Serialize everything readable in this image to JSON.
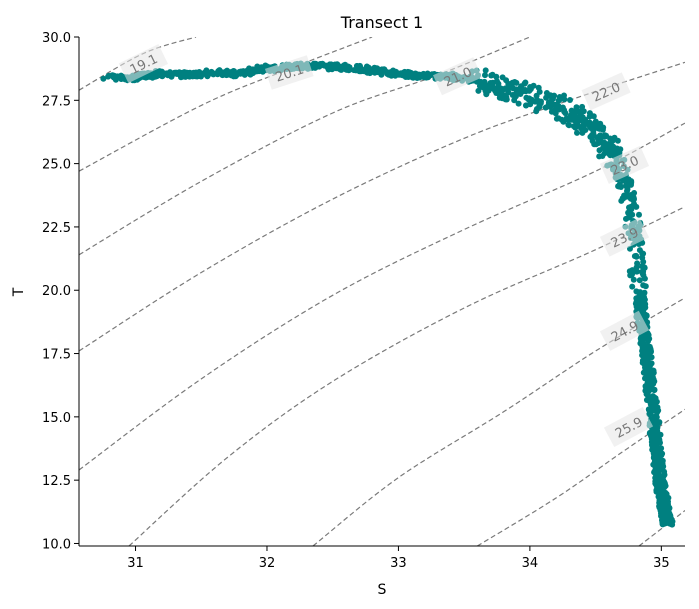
{
  "chart_data": {
    "type": "scatter",
    "title": "Transect 1",
    "xlabel": "S",
    "ylabel": "T",
    "xlim": [
      30.57,
      35.18
    ],
    "ylim": [
      9.9,
      30.0
    ],
    "xticks": [
      31,
      32,
      33,
      34,
      35
    ],
    "xtick_labels": [
      "31",
      "32",
      "33",
      "34",
      "35"
    ],
    "yticks": [
      10.0,
      12.5,
      15.0,
      17.5,
      20.0,
      22.5,
      25.0,
      27.5,
      30.0
    ],
    "ytick_labels": [
      "10.0",
      "12.5",
      "15.0",
      "17.5",
      "20.0",
      "22.5",
      "25.0",
      "27.5",
      "30.0"
    ],
    "grid": false,
    "marker_color": "#008080",
    "contour_color": "#7a7a7a",
    "density_contours": {
      "style": "dashed",
      "labeled_levels": [
        "19.1",
        "20.1",
        "21.0",
        "22.0",
        "23.0",
        "23.9",
        "24.9",
        "25.9"
      ],
      "lines": [
        {
          "level": "19.1",
          "points": [
            [
              30.57,
              27.9
            ],
            [
              31.06,
              29.35
            ],
            [
              31.46,
              30.0
            ]
          ]
        },
        {
          "level": "20.1",
          "points": [
            [
              30.57,
              24.7
            ],
            [
              31.5,
              27.3
            ],
            [
              32.15,
              28.7
            ],
            [
              32.8,
              30.0
            ]
          ]
        },
        {
          "level": "21.0",
          "points": [
            [
              30.57,
              21.4
            ],
            [
              31.5,
              24.3
            ],
            [
              32.5,
              27.0
            ],
            [
              33.3,
              28.5
            ],
            [
              34.0,
              30.0
            ]
          ]
        },
        {
          "level": "22.0",
          "points": [
            [
              30.57,
              17.6
            ],
            [
              31.5,
              20.7
            ],
            [
              32.5,
              23.6
            ],
            [
              33.5,
              26.0
            ],
            [
              34.3,
              27.5
            ],
            [
              35.18,
              29.0
            ]
          ]
        },
        {
          "level": "23.0",
          "points": [
            [
              30.57,
              12.9
            ],
            [
              31.5,
              16.5
            ],
            [
              32.5,
              19.8
            ],
            [
              33.5,
              22.4
            ],
            [
              34.5,
              24.7
            ],
            [
              35.18,
              26.6
            ]
          ]
        },
        {
          "level": "23.9",
          "points": [
            [
              30.95,
              9.9
            ],
            [
              31.7,
              13.4
            ],
            [
              32.5,
              16.4
            ],
            [
              33.5,
              19.3
            ],
            [
              34.5,
              21.6
            ],
            [
              35.18,
              23.3
            ]
          ]
        },
        {
          "level": "24.9",
          "points": [
            [
              32.35,
              9.9
            ],
            [
              33.0,
              12.6
            ],
            [
              33.8,
              15.2
            ],
            [
              34.5,
              17.6
            ],
            [
              35.18,
              19.7
            ]
          ]
        },
        {
          "level": "25.9",
          "points": [
            [
              33.6,
              9.9
            ],
            [
              34.2,
              11.8
            ],
            [
              34.7,
              13.6
            ],
            [
              35.18,
              15.3
            ]
          ]
        },
        {
          "level": "",
          "points": [
            [
              34.83,
              9.9
            ],
            [
              35.18,
              11.3
            ]
          ]
        }
      ]
    },
    "series": [
      {
        "trend": [
          [
            30.78,
            28.4
          ],
          [
            31.0,
            28.4
          ],
          [
            31.2,
            28.55
          ],
          [
            31.4,
            28.5
          ],
          [
            31.6,
            28.6
          ],
          [
            31.8,
            28.55
          ],
          [
            32.0,
            28.75
          ],
          [
            32.2,
            28.85
          ],
          [
            32.4,
            28.85
          ],
          [
            32.6,
            28.8
          ],
          [
            32.8,
            28.7
          ],
          [
            33.0,
            28.55
          ],
          [
            33.2,
            28.45
          ],
          [
            33.4,
            28.45
          ],
          [
            33.6,
            28.3
          ],
          [
            33.8,
            28.0
          ],
          [
            34.0,
            27.7
          ],
          [
            34.2,
            27.3
          ],
          [
            34.4,
            26.7
          ],
          [
            34.5,
            26.2
          ],
          [
            34.6,
            25.6
          ],
          [
            34.7,
            24.6
          ],
          [
            34.75,
            23.5
          ],
          [
            34.8,
            22.0
          ],
          [
            34.83,
            20.0
          ],
          [
            34.86,
            18.5
          ],
          [
            34.9,
            17.0
          ],
          [
            34.93,
            15.5
          ],
          [
            34.96,
            14.0
          ],
          [
            34.99,
            12.5
          ],
          [
            35.03,
            11.2
          ],
          [
            35.05,
            10.8
          ]
        ]
      }
    ]
  }
}
